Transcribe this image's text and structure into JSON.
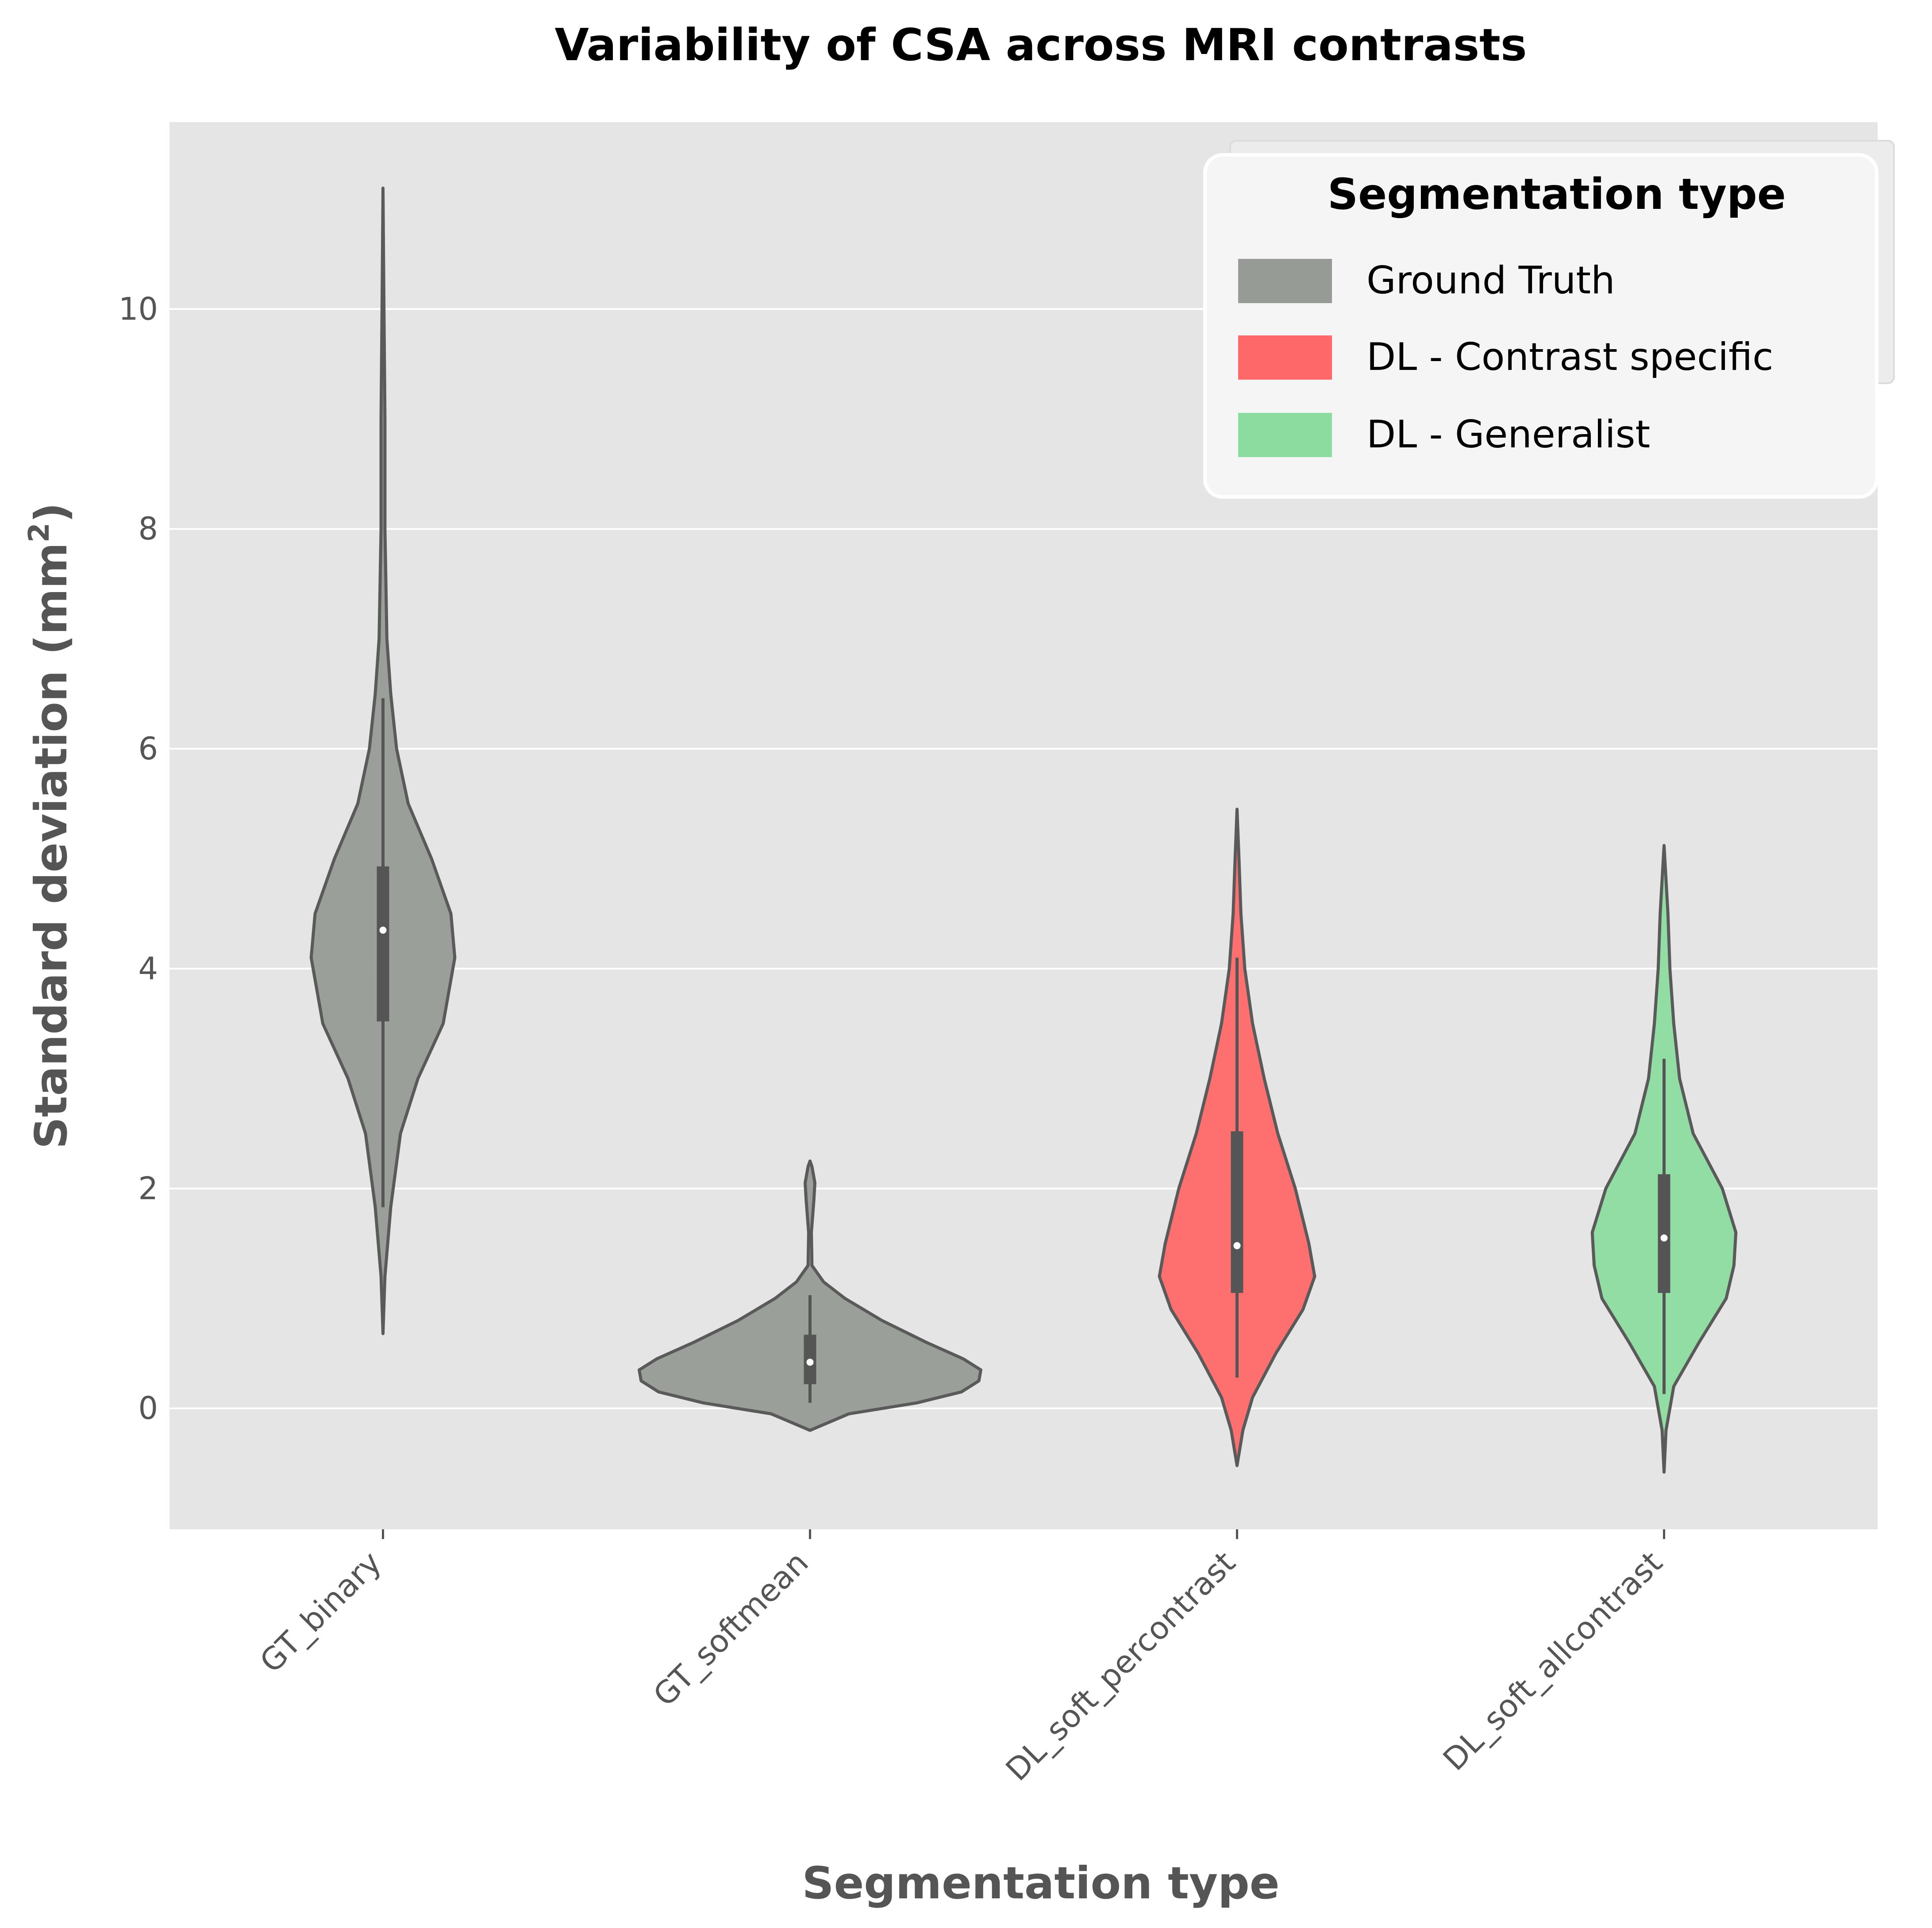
{
  "chart_data": {
    "type": "violin",
    "title": "Variability of CSA across MRI contrasts",
    "xlabel": "Segmentation type",
    "ylabel": "Standard deviation (mm",
    "ylabel_superscript": "2",
    "ylabel_suffix": ")",
    "ylim": [
      -1.1,
      11.7
    ],
    "yticks": [
      0,
      2,
      4,
      6,
      8,
      10
    ],
    "grid": true,
    "legend_title": "Segmentation type",
    "legend_position": "top-right",
    "legend": [
      {
        "label": "Ground Truth",
        "color": "#979b96"
      },
      {
        "label": "DL - Contrast specific",
        "color": "#ff6868"
      },
      {
        "label": "DL - Generalist",
        "color": "#8cdca0"
      }
    ],
    "categories": [
      "GT_binary",
      "GT_softmean",
      "DL_soft_percontrast",
      "DL_soft_allcontrast"
    ],
    "series": [
      {
        "name": "GT_binary",
        "group": "Ground Truth",
        "color": "#979b96",
        "median": 4.35,
        "q1": 3.52,
        "q3": 4.93,
        "whisker_low": 1.83,
        "whisker_high": 6.46,
        "kde_min": 0.68,
        "kde_max": 11.1,
        "density": [
          [
            0.68,
            0.0
          ],
          [
            1.2,
            0.01
          ],
          [
            1.83,
            0.04
          ],
          [
            2.5,
            0.09
          ],
          [
            3.0,
            0.18
          ],
          [
            3.5,
            0.31
          ],
          [
            4.1,
            0.37
          ],
          [
            4.5,
            0.35
          ],
          [
            5.0,
            0.25
          ],
          [
            5.5,
            0.13
          ],
          [
            6.0,
            0.07
          ],
          [
            6.5,
            0.04
          ],
          [
            7.0,
            0.02
          ],
          [
            8.0,
            0.01
          ],
          [
            9.0,
            0.01
          ],
          [
            10.0,
            0.005
          ],
          [
            11.1,
            0.0
          ]
        ]
      },
      {
        "name": "GT_softmean",
        "group": "Ground Truth",
        "color": "#979b96",
        "median": 0.42,
        "q1": 0.22,
        "q3": 0.67,
        "whisker_low": 0.05,
        "whisker_high": 1.03,
        "kde_min": -0.2,
        "kde_max": 2.25,
        "density": [
          [
            -0.2,
            0.0
          ],
          [
            -0.05,
            0.2
          ],
          [
            0.05,
            0.55
          ],
          [
            0.15,
            0.78
          ],
          [
            0.25,
            0.87
          ],
          [
            0.35,
            0.88
          ],
          [
            0.45,
            0.79
          ],
          [
            0.6,
            0.6
          ],
          [
            0.8,
            0.37
          ],
          [
            1.0,
            0.18
          ],
          [
            1.15,
            0.07
          ],
          [
            1.3,
            0.01
          ],
          [
            1.6,
            0.007
          ],
          [
            1.9,
            0.02
          ],
          [
            2.05,
            0.025
          ],
          [
            2.2,
            0.01
          ],
          [
            2.25,
            0.0
          ]
        ]
      },
      {
        "name": "DL_soft_percontrast",
        "group": "DL - Contrast specific",
        "color": "#ff6868",
        "median": 1.48,
        "q1": 1.05,
        "q3": 2.52,
        "whisker_low": 0.28,
        "whisker_high": 4.1,
        "kde_min": -0.52,
        "kde_max": 5.45,
        "density": [
          [
            -0.52,
            0.0
          ],
          [
            -0.2,
            0.03
          ],
          [
            0.1,
            0.08
          ],
          [
            0.5,
            0.2
          ],
          [
            0.9,
            0.34
          ],
          [
            1.2,
            0.4
          ],
          [
            1.5,
            0.37
          ],
          [
            2.0,
            0.3
          ],
          [
            2.5,
            0.21
          ],
          [
            3.0,
            0.14
          ],
          [
            3.5,
            0.08
          ],
          [
            4.0,
            0.04
          ],
          [
            4.5,
            0.02
          ],
          [
            5.0,
            0.01
          ],
          [
            5.45,
            0.0
          ]
        ]
      },
      {
        "name": "DL_soft_allcontrast",
        "group": "DL - Generalist",
        "color": "#8cdca0",
        "median": 1.55,
        "q1": 1.05,
        "q3": 2.13,
        "whisker_low": 0.13,
        "whisker_high": 3.18,
        "kde_min": -0.58,
        "kde_max": 5.12,
        "density": [
          [
            -0.58,
            0.0
          ],
          [
            -0.2,
            0.01
          ],
          [
            0.2,
            0.05
          ],
          [
            0.6,
            0.18
          ],
          [
            1.0,
            0.32
          ],
          [
            1.3,
            0.36
          ],
          [
            1.6,
            0.37
          ],
          [
            2.0,
            0.3
          ],
          [
            2.5,
            0.15
          ],
          [
            3.0,
            0.08
          ],
          [
            3.5,
            0.05
          ],
          [
            4.0,
            0.03
          ],
          [
            4.5,
            0.02
          ],
          [
            5.12,
            0.0
          ]
        ]
      }
    ]
  }
}
